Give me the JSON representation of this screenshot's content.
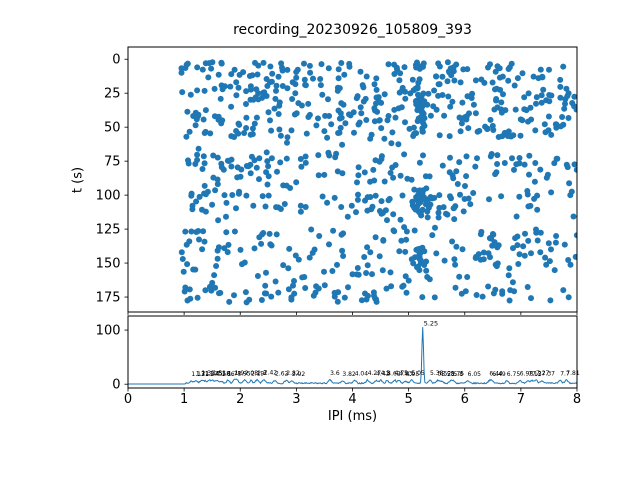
{
  "figure": {
    "title": "recording_20230926_105809_393",
    "background": "#ffffff",
    "text_color": "#000000"
  },
  "chart_data": [
    {
      "type": "scatter",
      "panel": "top",
      "title": "recording_20230926_105809_393",
      "xlabel": "IPI (ms)",
      "ylabel": "t (s)",
      "xlim": [
        0,
        8
      ],
      "ylim_top_to_bottom": [
        -9,
        186
      ],
      "y_axis_inverted": true,
      "yticks": [
        "0",
        "25",
        "50",
        "75",
        "100",
        "125",
        "150",
        "175"
      ],
      "ytick_values": [
        0,
        25,
        50,
        75,
        100,
        125,
        150,
        175
      ],
      "xtick_values": [
        0,
        1,
        2,
        3,
        4,
        5,
        6,
        7,
        8
      ],
      "x_tick_labels_hidden": true,
      "grid": false,
      "legend": null,
      "point_color": "#1f77b4",
      "marker_radius_px": 3,
      "n_points": 950,
      "x_range": [
        0.95,
        8.0
      ],
      "t_range": [
        2,
        179
      ],
      "vertical_dense_band": {
        "x": 5.2,
        "half_width": 0.07,
        "fraction": 0.085
      },
      "t_density_bands": [
        {
          "t0": 2,
          "t1": 58,
          "d": 1.0
        },
        {
          "t0": 58,
          "t1": 70,
          "d": 0.18
        },
        {
          "t0": 70,
          "t1": 88,
          "d": 0.8
        },
        {
          "t0": 88,
          "t1": 97,
          "d": 0.35
        },
        {
          "t0": 97,
          "t1": 116,
          "d": 0.85
        },
        {
          "t0": 116,
          "t1": 125,
          "d": 0.15
        },
        {
          "t0": 125,
          "t1": 148,
          "d": 0.9
        },
        {
          "t0": 148,
          "t1": 166,
          "d": 0.4
        },
        {
          "t0": 166,
          "t1": 179,
          "d": 0.85
        }
      ],
      "seed": 1337
    },
    {
      "type": "line",
      "panel": "bottom",
      "xlabel": "IPI (ms)",
      "ylabel": "",
      "xlim": [
        0,
        8
      ],
      "ylim_bottom_to_top": [
        -7,
        126
      ],
      "yticks": [
        "0",
        "100"
      ],
      "ytick_values": [
        0,
        100
      ],
      "xticks": [
        "0",
        "1",
        "2",
        "3",
        "4",
        "5",
        "6",
        "7",
        "8"
      ],
      "xtick_values": [
        0,
        1,
        2,
        3,
        4,
        5,
        6,
        7,
        8
      ],
      "grid": false,
      "legend": null,
      "line_color": "#1f77b4",
      "baseline_value": 0.4,
      "onset_x": 1.0,
      "noise_range": [
        0.6,
        3.0
      ],
      "main_peak": {
        "x": 5.25,
        "height": 103,
        "label": "5.25"
      },
      "peak_annotations": [
        {
          "x": 1.13,
          "h": 4,
          "label": "1.13"
        },
        {
          "x": 1.21,
          "h": 5,
          "label": "1.21"
        },
        {
          "x": 1.31,
          "h": 6,
          "label": "1.31"
        },
        {
          "x": 1.37,
          "h": 4,
          "label": "1.37"
        },
        {
          "x": 1.45,
          "h": 5,
          "label": "1.45"
        },
        {
          "x": 1.51,
          "h": 6,
          "label": "1.51"
        },
        {
          "x": 1.58,
          "h": 5,
          "label": "1.58"
        },
        {
          "x": 1.66,
          "h": 4,
          "label": "1.66"
        },
        {
          "x": 1.78,
          "h": 5,
          "label": "1.78"
        },
        {
          "x": 1.9,
          "h": 6,
          "label": "1.9"
        },
        {
          "x": 1.95,
          "h": 5,
          "label": "1.95"
        },
        {
          "x": 2.08,
          "h": 6,
          "label": "2.08"
        },
        {
          "x": 2.19,
          "h": 5,
          "label": "2.19"
        },
        {
          "x": 2.3,
          "h": 6,
          "label": "2.3"
        },
        {
          "x": 2.42,
          "h": 7,
          "label": "2.42"
        },
        {
          "x": 2.62,
          "h": 5,
          "label": "2.62"
        },
        {
          "x": 2.82,
          "h": 6,
          "label": "2.82"
        },
        {
          "x": 2.92,
          "h": 4,
          "label": "2.92"
        },
        {
          "x": 3.6,
          "h": 6,
          "label": "3.6"
        },
        {
          "x": 3.82,
          "h": 4,
          "label": "3.82"
        },
        {
          "x": 4.04,
          "h": 5,
          "label": "4.04"
        },
        {
          "x": 4.27,
          "h": 6,
          "label": "4.27"
        },
        {
          "x": 4.42,
          "h": 5,
          "label": "4.42"
        },
        {
          "x": 4.5,
          "h": 6,
          "label": "4.5"
        },
        {
          "x": 4.62,
          "h": 5,
          "label": "4.62"
        },
        {
          "x": 4.75,
          "h": 6,
          "label": "4.75"
        },
        {
          "x": 4.83,
          "h": 5,
          "label": "4.83"
        },
        {
          "x": 4.95,
          "h": 4,
          "label": "4.95"
        },
        {
          "x": 5.05,
          "h": 6,
          "label": "5.05"
        },
        {
          "x": 5.38,
          "h": 6,
          "label": "5.38"
        },
        {
          "x": 5.52,
          "h": 5,
          "label": "5.52"
        },
        {
          "x": 5.58,
          "h": 4,
          "label": "5.58"
        },
        {
          "x": 5.75,
          "h": 5,
          "label": "5.75"
        },
        {
          "x": 5.8,
          "h": 4,
          "label": "5.8"
        },
        {
          "x": 6.05,
          "h": 4,
          "label": "6.05"
        },
        {
          "x": 6.44,
          "h": 5,
          "label": "6.44"
        },
        {
          "x": 6.49,
          "h": 4,
          "label": "6.49"
        },
        {
          "x": 6.75,
          "h": 4,
          "label": "6.75"
        },
        {
          "x": 6.98,
          "h": 5,
          "label": "6.98"
        },
        {
          "x": 7.13,
          "h": 4,
          "label": "7.13"
        },
        {
          "x": 7.2,
          "h": 5,
          "label": "7.2"
        },
        {
          "x": 7.27,
          "h": 6,
          "label": "7.27"
        },
        {
          "x": 7.37,
          "h": 5,
          "label": "7.37"
        },
        {
          "x": 7.7,
          "h": 5,
          "label": "7.7"
        },
        {
          "x": 7.81,
          "h": 6,
          "label": "7.81"
        }
      ],
      "seed": 7
    }
  ]
}
